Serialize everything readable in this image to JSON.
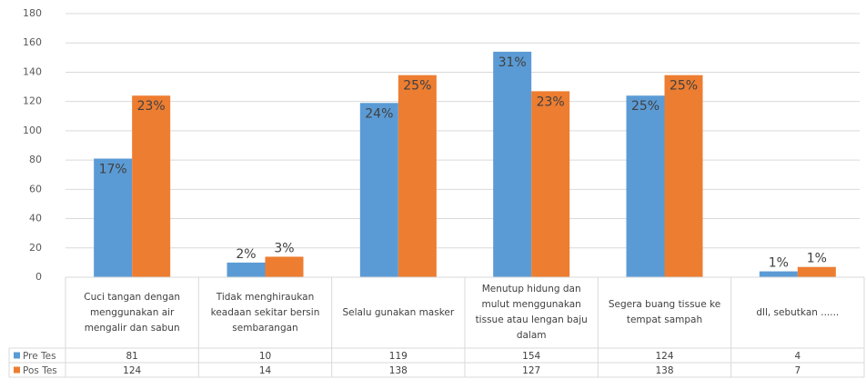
{
  "chart_data": {
    "type": "bar",
    "categories": [
      "Cuci tangan dengan menggunakan air mengalir dan sabun",
      "Tidak menghiraukan keadaan sekitar bersin sembarangan",
      "Selalu gunakan masker",
      "Menutup hidung dan mulut menggunakan tissue atau lengan baju dalam",
      "Segera buang tissue ke tempat sampah",
      "dll, sebutkan ......"
    ],
    "series": [
      {
        "name": "Pre Tes",
        "color": "#5b9bd5",
        "values": [
          81,
          10,
          119,
          154,
          124,
          4
        ],
        "labels": [
          "17%",
          "2%",
          "24%",
          "31%",
          "25%",
          "1%"
        ]
      },
      {
        "name": "Pos Tes",
        "color": "#ed7d31",
        "values": [
          124,
          14,
          138,
          127,
          138,
          7
        ],
        "labels": [
          "23%",
          "3%",
          "25%",
          "23%",
          "25%",
          "1%"
        ]
      }
    ],
    "ylim": [
      0,
      180
    ],
    "yticks": [
      0,
      20,
      40,
      60,
      80,
      100,
      120,
      140,
      160,
      180
    ],
    "grid": true,
    "data_table": true
  }
}
